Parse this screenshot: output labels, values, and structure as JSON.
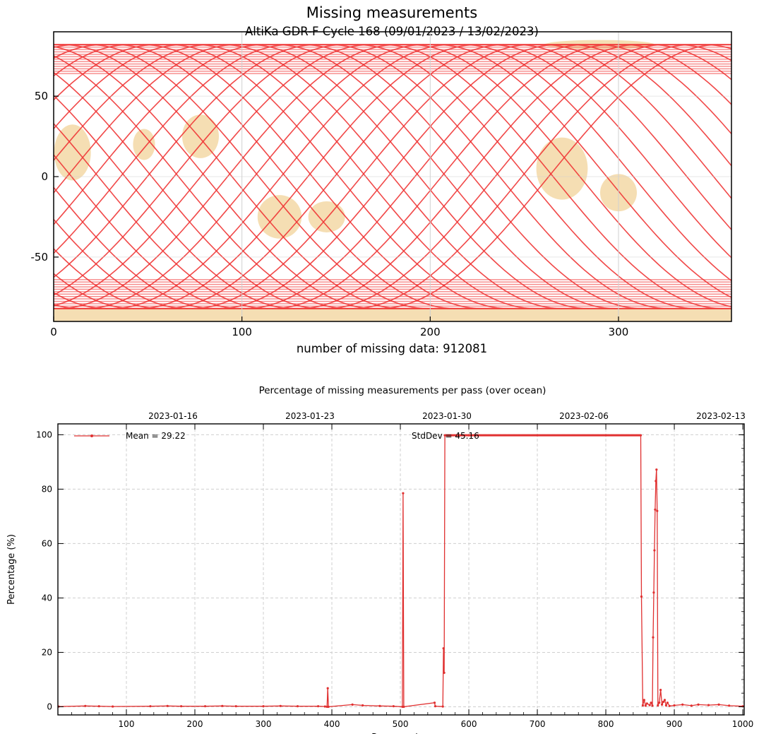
{
  "chart_data": [
    {
      "type": "scatter",
      "title": "Missing measurements",
      "subtitle": "AltiKa GDR-F Cycle 168 (09/01/2023 / 13/02/2023)",
      "footer": "number of missing data: 912081",
      "xlim": [
        0,
        360
      ],
      "ylim": [
        -90,
        90
      ],
      "x_ticks": [
        0,
        100,
        200,
        300
      ],
      "y_ticks": [
        50,
        0,
        -50
      ],
      "grid": true,
      "track_color": "#f03535",
      "land_color": "#f5deb3",
      "description_values": {
        "track_latitude_limit": 82,
        "ascending_tracks": 38,
        "descending_tracks": 38
      }
    },
    {
      "type": "line",
      "title": "Percentage of missing measurements per pass (over ocean)",
      "xlabel": "Pass number",
      "ylabel": "Percentage (%)",
      "xlim": [
        0,
        1002
      ],
      "ylim": [
        -3,
        104
      ],
      "x_ticks": [
        100,
        200,
        300,
        400,
        500,
        600,
        700,
        800,
        900,
        1000
      ],
      "y_ticks": [
        0,
        20,
        40,
        60,
        80,
        100
      ],
      "top_axis_ticks": [
        {
          "label": "2023-01-16",
          "pass": 100
        },
        {
          "label": "2023-01-23",
          "pass": 300
        },
        {
          "label": "2023-01-30",
          "pass": 500
        },
        {
          "label": "2023-02-06",
          "pass": 700
        },
        {
          "label": "2023-02-13",
          "pass": 900
        }
      ],
      "grid": true,
      "legend_position": "top-left",
      "legend_label": "Mean = 29.22",
      "stddev_label": "StdDev = 45.16",
      "series_color": "#e03030",
      "points": [
        [
          1,
          0.1
        ],
        [
          40,
          0.3
        ],
        [
          60,
          0.2
        ],
        [
          80,
          0.1
        ],
        [
          135,
          0.2
        ],
        [
          160,
          0.3
        ],
        [
          180,
          0.2
        ],
        [
          215,
          0.2
        ],
        [
          240,
          0.3
        ],
        [
          260,
          0.2
        ],
        [
          300,
          0.2
        ],
        [
          325,
          0.3
        ],
        [
          350,
          0.2
        ],
        [
          380,
          0.2
        ],
        [
          390,
          0.1
        ],
        [
          393,
          0
        ],
        [
          394,
          6.8
        ],
        [
          395,
          0
        ],
        [
          430,
          0.8
        ],
        [
          445,
          0.5
        ],
        [
          470,
          0.3
        ],
        [
          490,
          0.2
        ],
        [
          503,
          0
        ],
        [
          504,
          78.5
        ],
        [
          505,
          0
        ],
        [
          550,
          1.5
        ],
        [
          551,
          0.2
        ],
        [
          562,
          0.1
        ],
        [
          563,
          21.5
        ],
        [
          564,
          12.5
        ],
        [
          565,
          99.8
        ],
        [
          600,
          99.8
        ],
        [
          700,
          99.8
        ],
        [
          800,
          99.8
        ],
        [
          851,
          99.8
        ],
        [
          852,
          40.5
        ],
        [
          854,
          0.5
        ],
        [
          856,
          2.5
        ],
        [
          858,
          0.4
        ],
        [
          860,
          1.2
        ],
        [
          864,
          0.6
        ],
        [
          866,
          1.5
        ],
        [
          868,
          0.4
        ],
        [
          869,
          25.5
        ],
        [
          870,
          42
        ],
        [
          871,
          57.5
        ],
        [
          872,
          72.5
        ],
        [
          873,
          83
        ],
        [
          874,
          87.2
        ],
        [
          875,
          72
        ],
        [
          876,
          0.5
        ],
        [
          878,
          1.5
        ],
        [
          880,
          6.2
        ],
        [
          882,
          0.8
        ],
        [
          884,
          1.8
        ],
        [
          886,
          2.5
        ],
        [
          888,
          0.5
        ],
        [
          890,
          1.5
        ],
        [
          893,
          0.3
        ],
        [
          900,
          0.5
        ],
        [
          912,
          0.8
        ],
        [
          925,
          0.4
        ],
        [
          935,
          0.8
        ],
        [
          950,
          0.6
        ],
        [
          965,
          0.8
        ],
        [
          980,
          0.4
        ],
        [
          1000,
          0.2
        ]
      ]
    }
  ]
}
